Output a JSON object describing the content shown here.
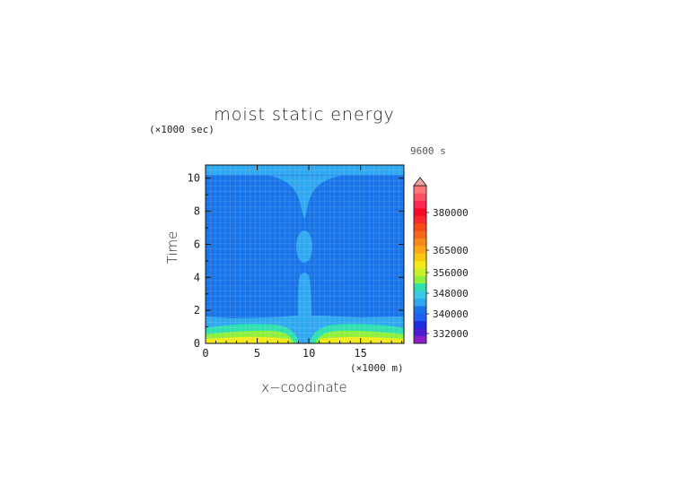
{
  "chart_data": {
    "type": "heatmap",
    "title": "moist static energy",
    "time_label": "9600 s",
    "xlabel": "x−coodinate",
    "ylabel": "Time",
    "x_unit": "(×1000 m)",
    "y_unit": "(×1000 sec)",
    "xlim": [
      0,
      19.2
    ],
    "ylim": [
      0,
      10.8
    ],
    "x_ticks": [
      "0",
      "5",
      "10",
      "15"
    ],
    "y_ticks": [
      "0",
      "2",
      "4",
      "6",
      "8",
      "10"
    ],
    "colorbar_labels": [
      "332000",
      "340000",
      "348000",
      "356000",
      "365000",
      "380000"
    ],
    "regions": [
      {
        "name": "domain",
        "level_color": "#1874e8",
        "approx_value": 338000
      },
      {
        "name": "central-plume",
        "level_color": "#2fa8f0",
        "approx_value": 342000
      },
      {
        "name": "lower-layer",
        "level_color": "#2fa8f0",
        "approx_value": 342000
      },
      {
        "name": "near-surface-band",
        "level_color": "#2ee0b0",
        "approx_value": 346000
      },
      {
        "name": "surface-band",
        "level_color": "#8ef03c",
        "approx_value": 350000
      },
      {
        "name": "surface-core",
        "level_color": "#f4ea18",
        "approx_value": 354000
      },
      {
        "name": "top-above-9600s",
        "level_color": "#2fa8f0",
        "approx_value": 342000
      }
    ],
    "grid": true,
    "legend": "colorbar-right"
  },
  "colors": {
    "colorbar": [
      "#8a1fc8",
      "#4a1fd0",
      "#1e2ee0",
      "#1e5ff0",
      "#1874e8",
      "#2fa8f0",
      "#38c8e8",
      "#2ee0b0",
      "#8ef03c",
      "#c8f028",
      "#f4ea18",
      "#f8c810",
      "#fca818",
      "#f88818",
      "#f86418",
      "#f84818",
      "#f82830",
      "#f80828",
      "#fc2850",
      "#fc5064",
      "#fc7878"
    ],
    "arrow": "#f4a4a4"
  }
}
